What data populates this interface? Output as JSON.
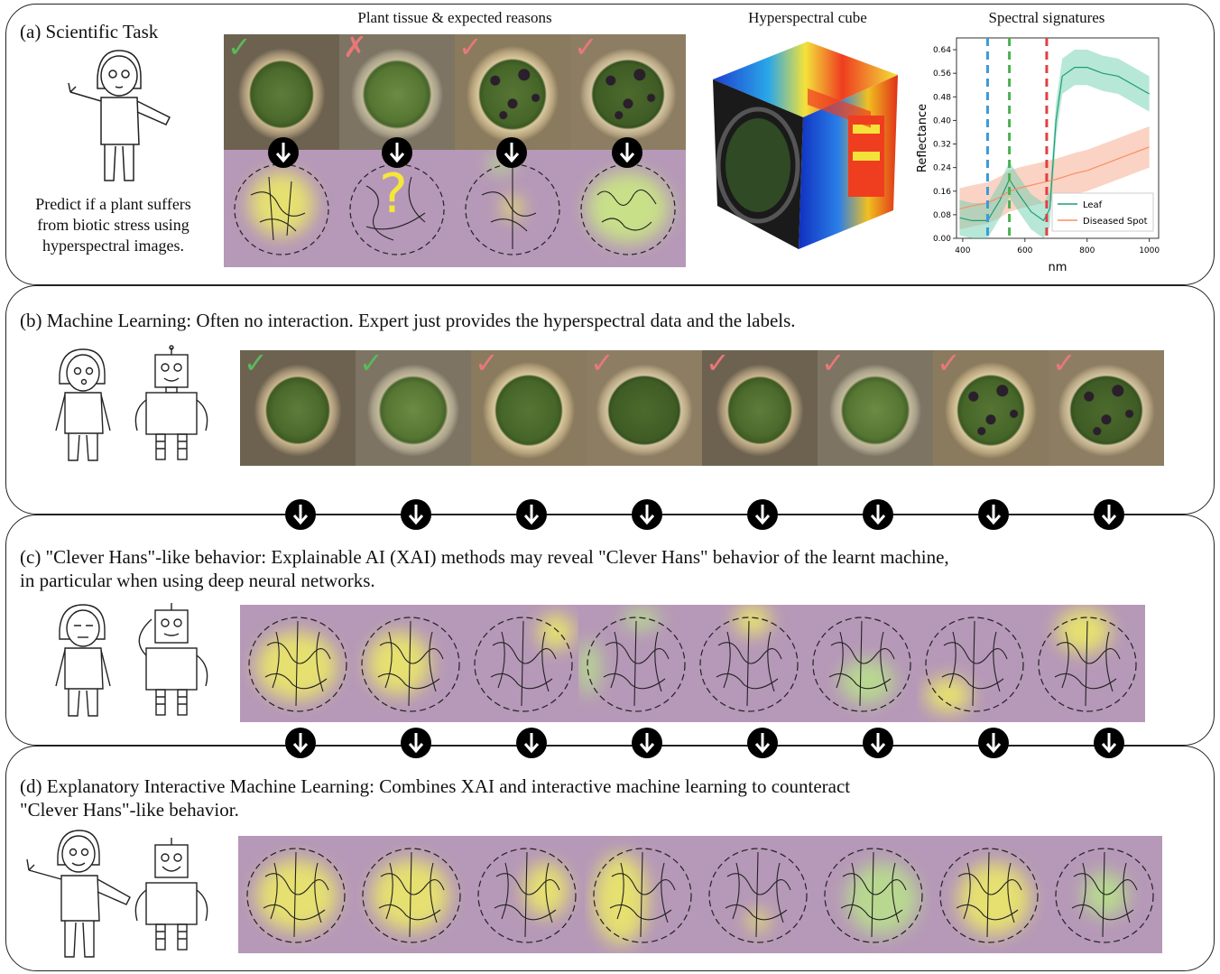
{
  "panel_a": {
    "title": "(a) Scientific Task",
    "hdr_tissue": "Plant tissue & expected reasons",
    "hdr_cube": "Hyperspectral cube",
    "hdr_spectral": "Spectral signatures",
    "task_text": "Predict if a plant suffers\nfrom biotic stress using\nhyperspectral images.",
    "marks": [
      "✓",
      "✗",
      "✓",
      "✓"
    ],
    "question": "?"
  },
  "panel_b": {
    "title": "(b) Machine Learning: Often no interaction. Expert just provides the hyperspectral data and the labels.",
    "marks": [
      "✓",
      "✓",
      "✓",
      "✓",
      "✓",
      "✓",
      "✓",
      "✓"
    ]
  },
  "panel_c": {
    "title": "(c) \"Clever Hans\"-like behavior: Explainable AI (XAI) methods may reveal \"Clever Hans\" behavior of the learnt machine,\nin particular when using deep neural networks."
  },
  "panel_d": {
    "title": "(d) Explanatory Interactive Machine Learning: Combines XAI and interactive machine learning to counteract\n\"Clever Hans\"-like behavior."
  },
  "colors": {
    "check": "#5cb85c",
    "check_red": "#e87878",
    "cross": "#e87878",
    "leaf_line": "#1b9e77",
    "spot_line": "#fc8d62",
    "dash_blue": "#3a9ad9",
    "dash_green": "#4caf50",
    "dash_red": "#e04040",
    "heat_bg": "#b698b8"
  },
  "chart_data": {
    "type": "line",
    "title": "",
    "xlabel": "nm",
    "ylabel": "Reflectance",
    "xlim": [
      380,
      1030
    ],
    "ylim": [
      0.0,
      0.68
    ],
    "xticks": [
      "400",
      "600",
      "800",
      "1000"
    ],
    "yticks": [
      "0.00",
      "0.08",
      "0.16",
      "0.24",
      "0.32",
      "0.40",
      "0.48",
      "0.56",
      "0.64"
    ],
    "vlines": [
      {
        "x": 480,
        "color": "blue"
      },
      {
        "x": 550,
        "color": "green"
      },
      {
        "x": 670,
        "color": "red"
      }
    ],
    "series": [
      {
        "name": "Leaf",
        "x": [
          390,
          430,
          480,
          520,
          550,
          580,
          620,
          660,
          680,
          700,
          720,
          760,
          800,
          850,
          900,
          950,
          1000
        ],
        "y": [
          0.07,
          0.06,
          0.06,
          0.13,
          0.2,
          0.15,
          0.09,
          0.06,
          0.1,
          0.4,
          0.55,
          0.58,
          0.58,
          0.56,
          0.55,
          0.52,
          0.49
        ]
      },
      {
        "name": "Diseased Spot",
        "x": [
          390,
          430,
          480,
          520,
          550,
          580,
          620,
          660,
          700,
          760,
          800,
          850,
          900,
          950,
          1000
        ],
        "y": [
          0.1,
          0.11,
          0.12,
          0.14,
          0.16,
          0.17,
          0.18,
          0.19,
          0.2,
          0.22,
          0.23,
          0.25,
          0.27,
          0.29,
          0.31
        ]
      }
    ],
    "legend": "bottom-right"
  }
}
